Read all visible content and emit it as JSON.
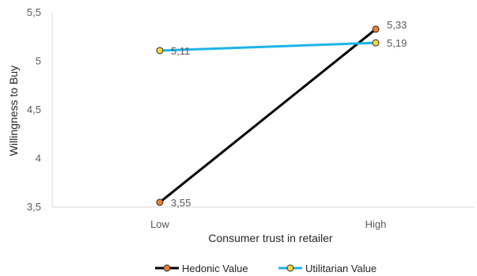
{
  "chart_data": {
    "type": "line",
    "categories": [
      "Low",
      "High"
    ],
    "series": [
      {
        "name": "Hedonic Value",
        "values": [
          3.55,
          5.33
        ],
        "labels": [
          "3,55",
          "5,33"
        ],
        "line_color": "#000000",
        "marker_color": "#ED7D31"
      },
      {
        "name": "Utilitarian Value",
        "values": [
          5.11,
          5.19
        ],
        "labels": [
          "5,11",
          "5,19"
        ],
        "line_color": "#1CB4E8",
        "marker_color": "#FFD43B"
      }
    ],
    "xlabel": "Consumer trust in retailer",
    "ylabel": "Willingness to Buy",
    "ylim": [
      3.5,
      5.5
    ],
    "yticks": [
      3.5,
      4,
      4.5,
      5,
      5.5
    ],
    "ytick_labels": [
      "3,5",
      "4",
      "4,5",
      "5",
      "5,5"
    ],
    "grid": false,
    "legend_position": "bottom"
  }
}
